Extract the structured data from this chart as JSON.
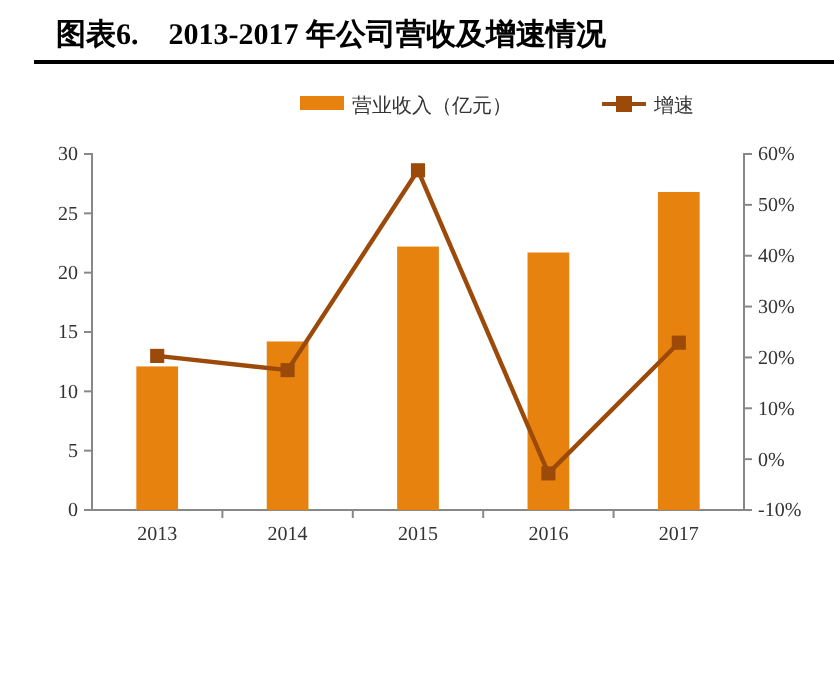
{
  "chart_data": {
    "type": "bar",
    "title": "图表6.    2013-2017 年公司营收及增速情况",
    "categories": [
      "2013",
      "2014",
      "2015",
      "2016",
      "2017"
    ],
    "series": [
      {
        "name": "营业收入（亿元）",
        "color": "#e8820e",
        "values": [
          12.1,
          14.2,
          22.2,
          21.7,
          26.8
        ]
      },
      {
        "name": "增速",
        "type": "line",
        "axis": "y2",
        "color": "#9c4a0a",
        "values": [
          20.3,
          17.5,
          56.8,
          -2.8,
          22.9
        ]
      }
    ],
    "ylim": [
      0,
      30
    ],
    "yticks": [
      0,
      5,
      10,
      15,
      20,
      25,
      30
    ],
    "y2lim": [
      -10,
      60
    ],
    "y2ticks": [
      {
        "value": -10,
        "label": "-10%"
      },
      {
        "value": 0,
        "label": "0%"
      },
      {
        "value": 10,
        "label": "10%"
      },
      {
        "value": 20,
        "label": "20%"
      },
      {
        "value": 30,
        "label": "30%"
      },
      {
        "value": 40,
        "label": "40%"
      },
      {
        "value": 50,
        "label": "50%"
      },
      {
        "value": 60,
        "label": "60%"
      }
    ],
    "legend": "top",
    "marker": "square",
    "grid": false
  }
}
